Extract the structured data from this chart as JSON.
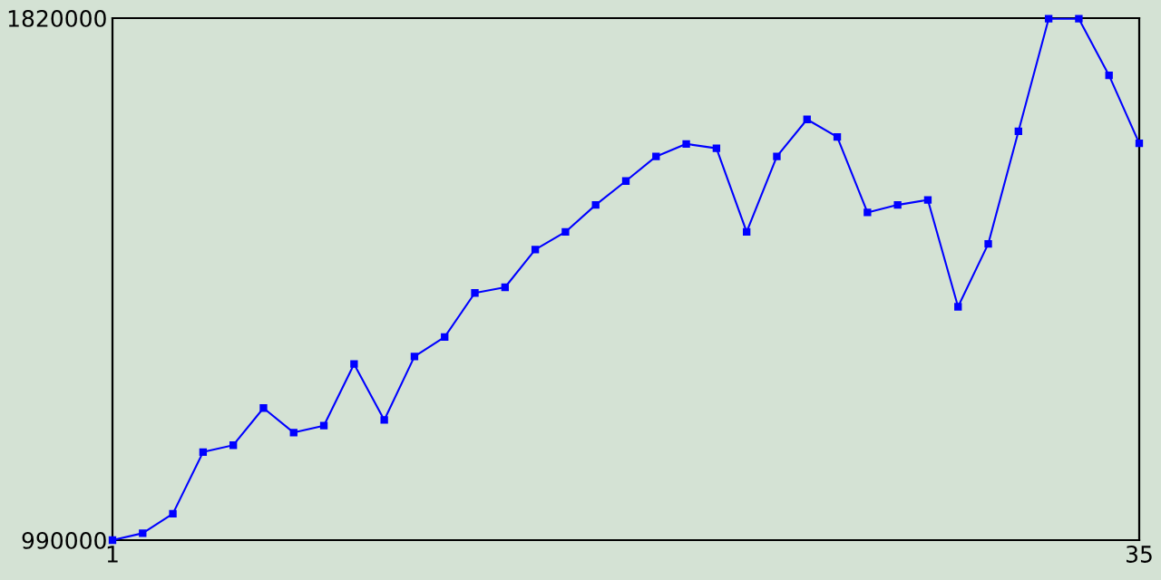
{
  "chart_data": {
    "type": "line",
    "x": [
      1,
      2,
      3,
      4,
      5,
      6,
      7,
      8,
      9,
      10,
      11,
      12,
      13,
      14,
      15,
      16,
      17,
      18,
      19,
      20,
      21,
      22,
      23,
      24,
      25,
      26,
      27,
      28,
      29,
      30,
      31,
      32,
      33,
      34,
      35
    ],
    "series": [
      {
        "color": "#0000ff",
        "values": [
          990000,
          1001000,
          1032000,
          1130000,
          1141000,
          1200000,
          1161000,
          1172000,
          1270000,
          1181000,
          1282000,
          1313000,
          1383000,
          1392000,
          1452000,
          1480000,
          1523000,
          1561000,
          1600000,
          1620000,
          1613000,
          1480000,
          1600000,
          1659000,
          1631000,
          1511000,
          1523000,
          1531000,
          1361000,
          1461000,
          1640000,
          1819000,
          1819000,
          1729000,
          1621000
        ]
      }
    ],
    "xlim": [
      1,
      35
    ],
    "xticks": [
      1,
      35
    ],
    "ylim": [
      990000,
      1820000
    ],
    "yticks": [
      990000,
      1820000
    ],
    "grid": false,
    "legend": false,
    "marker": "square",
    "line_style": "solid"
  }
}
